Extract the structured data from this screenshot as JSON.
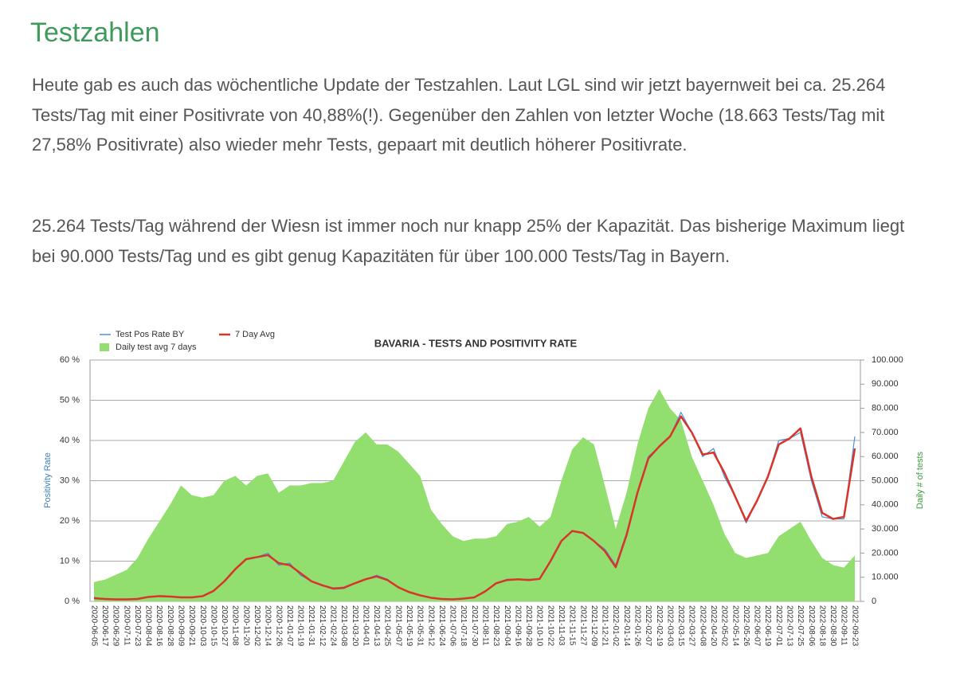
{
  "heading": "Testzahlen",
  "paragraphs": [
    "Heute gab es auch das wöchentliche Update der Testzahlen. Laut LGL sind wir jetzt bayernweit bei ca. 25.264 Tests/Tag mit einer Positivrate von 40,88%(!). Gegenüber den Zahlen von letzter Woche (18.663 Tests/Tag mit 27,58% Positivrate) also wieder mehr Tests, gepaart mit deutlich höherer Positivrate.",
    "25.264 Tests/Tag während der Wiesn ist immer noch nur knapp 25% der Kapazität. Das bisherige Maximum liegt bei 90.000 Tests/Tag und es gibt genug Kapazitäten für über 100.000 Tests/Tag in Bayern."
  ],
  "chart_data": {
    "type": "combo",
    "title": "BAVARIA - TESTS AND POSITIVITY RATE",
    "ylabel": "Positivity Rate",
    "y2label": "Daily # of tests",
    "legend": "top-left",
    "grid": true,
    "categories": [
      "2020-06-05",
      "2020-06-17",
      "2020-06-29",
      "2020-07-11",
      "2020-07-23",
      "2020-08-04",
      "2020-08-16",
      "2020-08-28",
      "2020-09-09",
      "2020-09-21",
      "2020-10-03",
      "2020-10-15",
      "2020-10-27",
      "2020-11-08",
      "2020-11-20",
      "2020-12-02",
      "2020-12-14",
      "2020-12-26",
      "2021-01-07",
      "2021-01-19",
      "2021-01-31",
      "2021-02-12",
      "2021-02-24",
      "2021-03-08",
      "2021-03-20",
      "2021-04-01",
      "2021-04-13",
      "2021-04-25",
      "2021-05-07",
      "2021-05-19",
      "2021-05-31",
      "2021-06-12",
      "2021-06-24",
      "2021-07-06",
      "2021-07-18",
      "2021-07-30",
      "2021-08-11",
      "2021-08-23",
      "2021-09-04",
      "2021-09-16",
      "2021-09-28",
      "2021-10-10",
      "2021-10-22",
      "2021-11-03",
      "2021-11-15",
      "2021-11-27",
      "2021-12-09",
      "2021-12-21",
      "2022-01-02",
      "2022-01-14",
      "2022-01-26",
      "2022-02-07",
      "2022-02-19",
      "2022-03-03",
      "2022-03-15",
      "2022-03-27",
      "2022-04-08",
      "2022-04-20",
      "2022-05-02",
      "2022-05-14",
      "2022-05-26",
      "2022-06-07",
      "2022-06-19",
      "2022-07-01",
      "2022-07-13",
      "2022-07-25",
      "2022-08-06",
      "2022-08-18",
      "2022-08-30",
      "2022-09-11",
      "2022-09-23"
    ],
    "series": [
      {
        "name": "Daily test avg 7 days",
        "kind": "area",
        "axis": "y2",
        "color": "#92de6e",
        "values": [
          8000,
          9000,
          11000,
          13000,
          18000,
          26000,
          33000,
          40000,
          48000,
          44000,
          43000,
          44000,
          50000,
          52000,
          48000,
          52000,
          53000,
          45000,
          48000,
          48000,
          49000,
          49000,
          50000,
          58000,
          66000,
          70000,
          65000,
          65000,
          62000,
          57000,
          52000,
          38000,
          32000,
          27000,
          25000,
          26000,
          26000,
          27000,
          32000,
          33000,
          35000,
          31000,
          35000,
          50000,
          63000,
          68000,
          65000,
          48000,
          30000,
          45000,
          65000,
          80000,
          88000,
          80000,
          75000,
          60000,
          50000,
          40000,
          28000,
          20000,
          18000,
          19000,
          20000,
          27000,
          30000,
          33000,
          25000,
          18000,
          15000,
          14000,
          19000
        ]
      },
      {
        "name": "Test Pos Rate BY",
        "kind": "line",
        "color": "#4a90d9",
        "values": [
          1.0,
          0.5,
          0.5,
          0.5,
          0.5,
          1.2,
          1.3,
          1.2,
          1.0,
          1.0,
          1.2,
          2.5,
          5,
          8,
          10.5,
          11,
          12,
          9,
          9.5,
          6.5,
          5,
          4,
          3,
          3.2,
          4.5,
          5.5,
          6.5,
          5.5,
          3.5,
          2.2,
          1.5,
          0.8,
          0.6,
          0.5,
          0.7,
          1.0,
          2.5,
          4.5,
          5.5,
          5.5,
          5.5,
          5.5,
          10,
          15,
          17.5,
          17,
          15,
          13,
          9,
          17,
          27,
          36,
          38.5,
          41,
          47,
          42,
          36,
          38,
          31,
          26,
          19.5,
          25,
          31,
          40,
          40.5,
          42,
          30,
          21,
          20.5,
          20.5,
          41
        ]
      },
      {
        "name": "7 Day Avg",
        "kind": "line",
        "color": "#d8342a",
        "values": [
          0.8,
          0.6,
          0.5,
          0.5,
          0.6,
          1.1,
          1.3,
          1.2,
          1.0,
          1.0,
          1.3,
          2.6,
          5,
          8,
          10.5,
          11,
          11.5,
          9.5,
          9,
          7,
          5,
          4,
          3.2,
          3.4,
          4.5,
          5.5,
          6.2,
          5.3,
          3.5,
          2.3,
          1.5,
          0.9,
          0.6,
          0.5,
          0.7,
          1.0,
          2.5,
          4.5,
          5.3,
          5.5,
          5.3,
          5.6,
          10,
          15,
          17.5,
          17,
          15,
          12.5,
          8.5,
          16.5,
          27,
          35.5,
          38.5,
          41,
          46,
          42,
          36.5,
          37,
          32,
          26,
          20,
          25,
          31,
          39,
          40.5,
          43,
          31,
          22,
          20.5,
          21,
          38
        ]
      }
    ],
    "ylim": [
      0,
      60
    ],
    "yticks": [
      {
        "value": 0,
        "label": "0 %"
      },
      {
        "value": 10,
        "label": "10 %"
      },
      {
        "value": 20,
        "label": "20 %"
      },
      {
        "value": 30,
        "label": "30 %"
      },
      {
        "value": 40,
        "label": "40 %"
      },
      {
        "value": 50,
        "label": "50 %"
      },
      {
        "value": 60,
        "label": "60 %"
      }
    ],
    "y2lim": [
      0,
      100000
    ],
    "y2ticks": [
      0,
      {
        "value": 10000,
        "label": "10.000"
      },
      {
        "value": 20000,
        "label": "20.000"
      },
      {
        "value": 30000,
        "label": "30.000"
      },
      {
        "value": 40000,
        "label": "40.000"
      },
      {
        "value": 50000,
        "label": "50.000"
      },
      {
        "value": 60000,
        "label": "60.000"
      },
      {
        "value": 70000,
        "label": "70.000"
      },
      {
        "value": 80000,
        "label": "80.000"
      },
      {
        "value": 90000,
        "label": "90.000"
      },
      {
        "value": 100000,
        "label": "100.000"
      }
    ]
  }
}
